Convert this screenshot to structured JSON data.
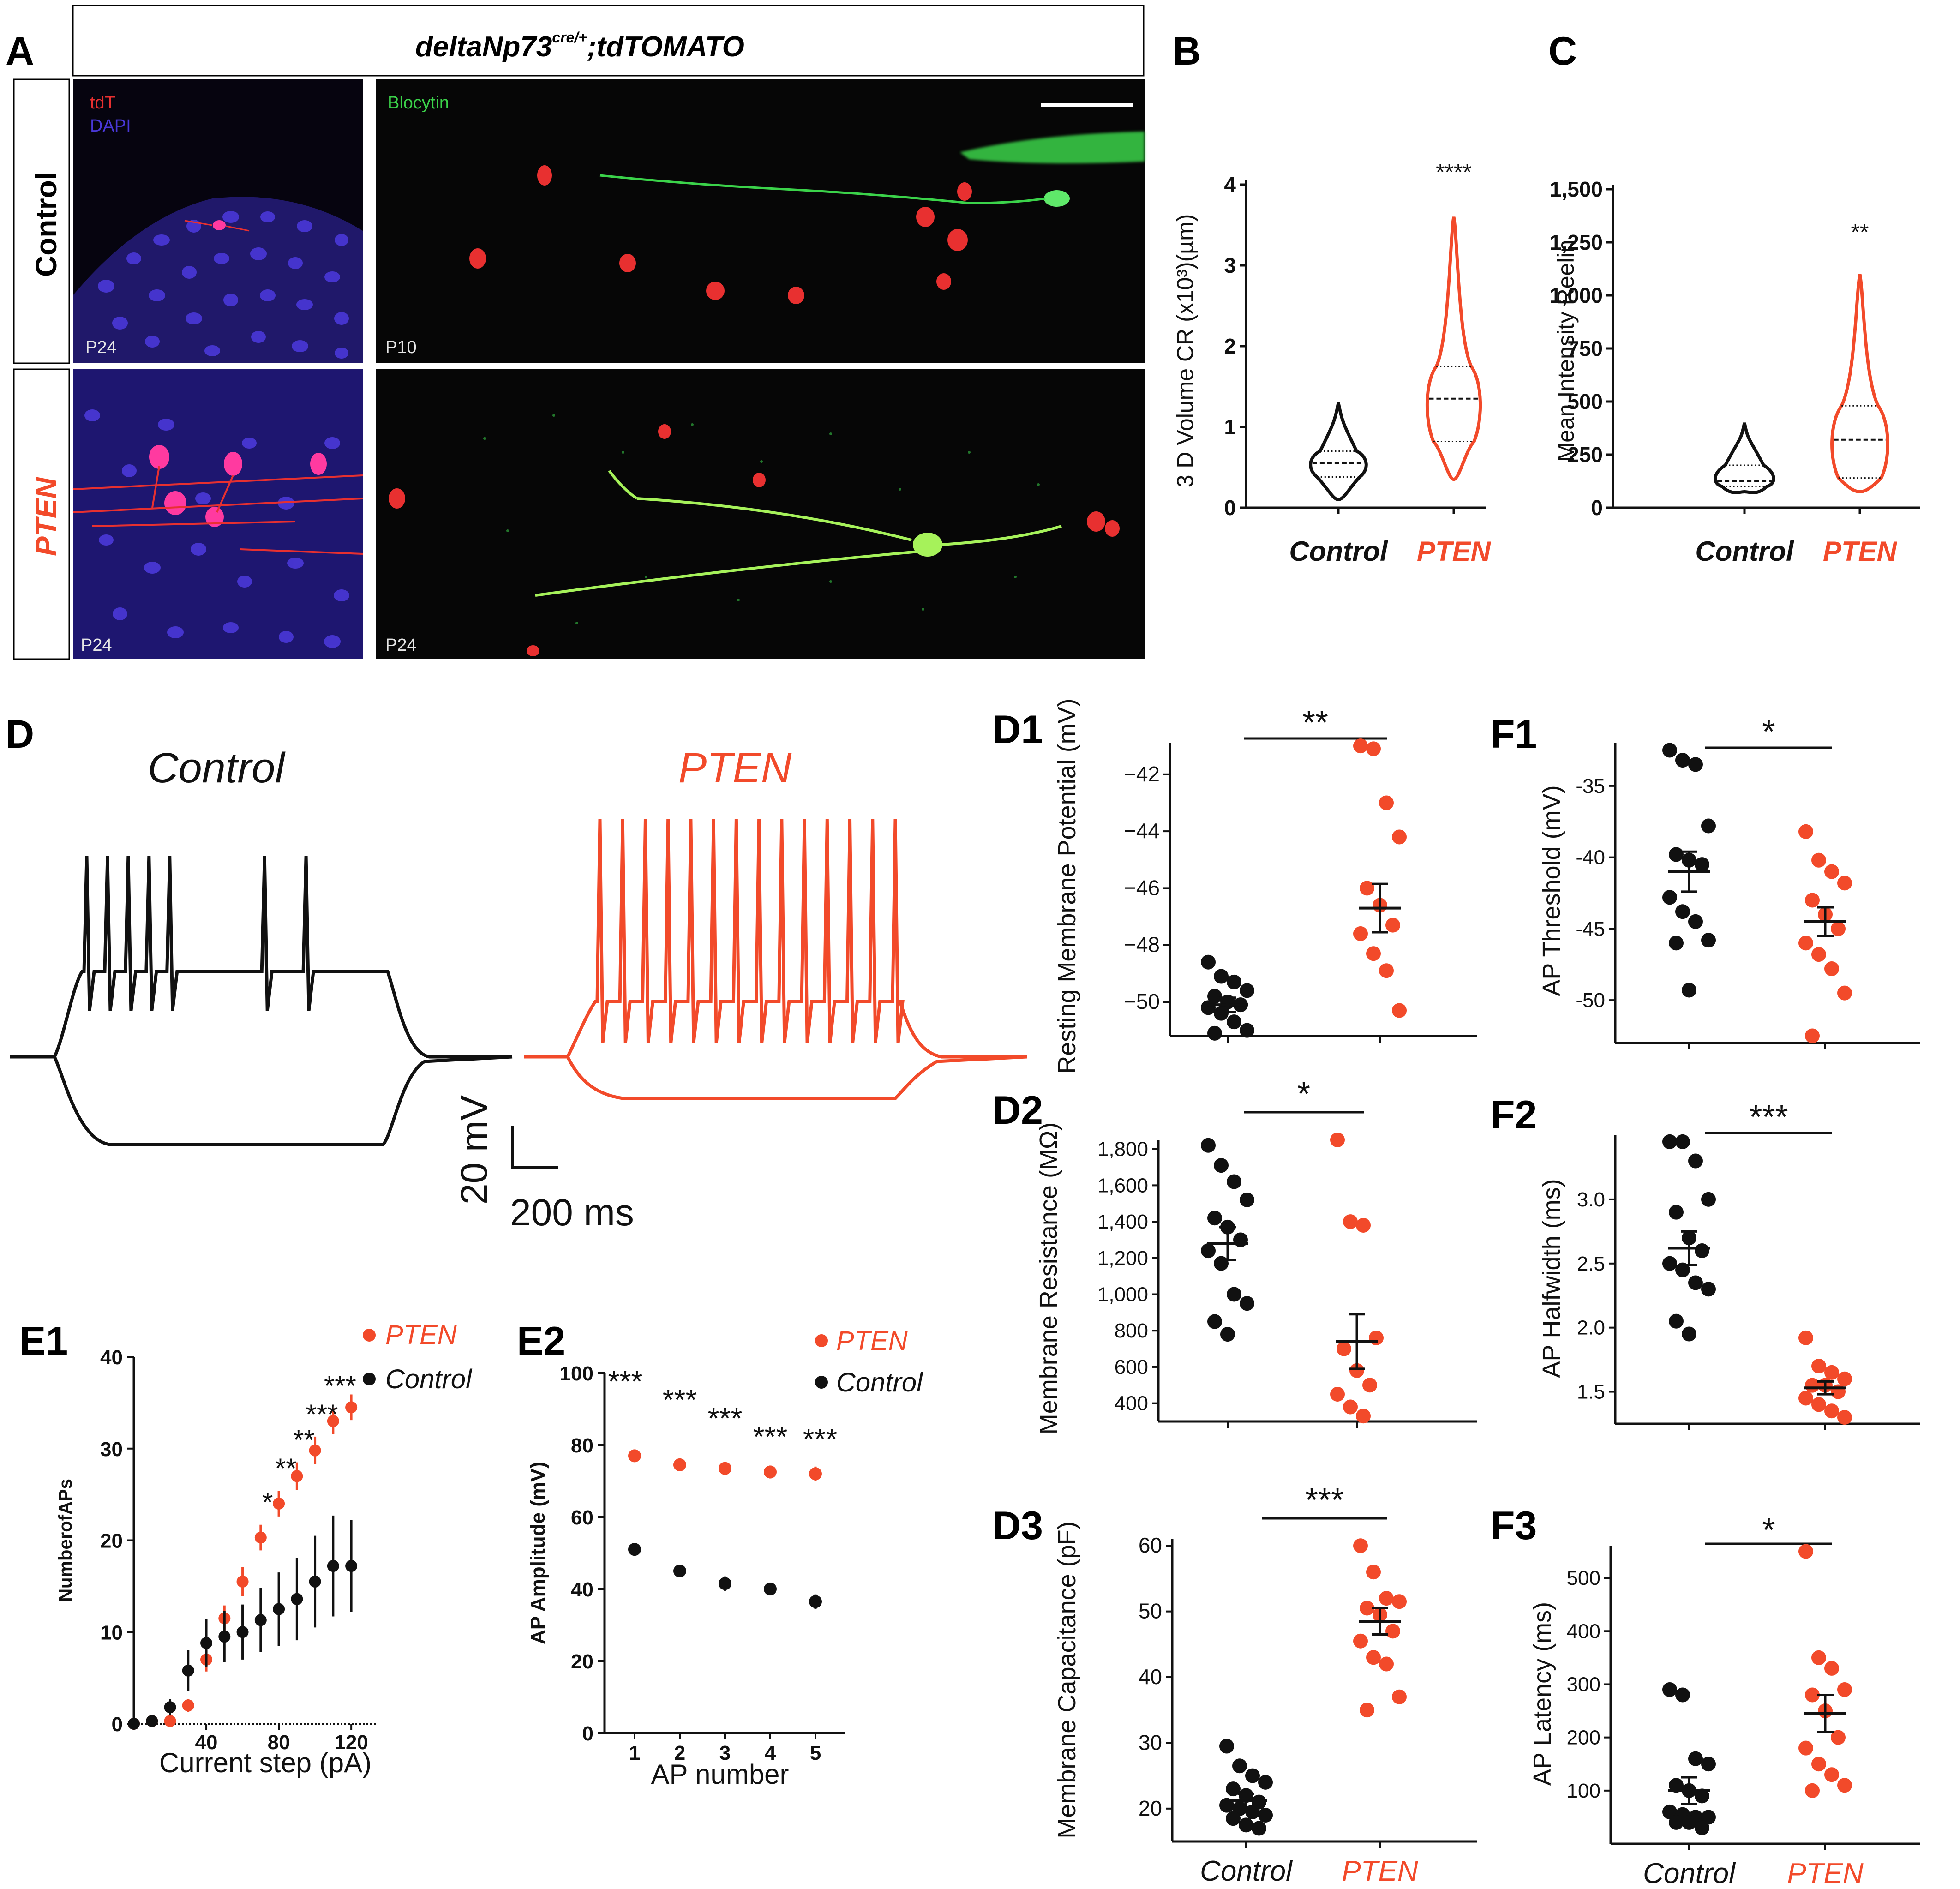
{
  "colors": {
    "pten": "#f24a2a",
    "control": "#111111",
    "tdt": "#e83030",
    "dapi": "#4a38d8",
    "blocytin": "#3bd34a"
  },
  "panel_letters": {
    "A": "A",
    "B": "B",
    "C": "C",
    "D": "D",
    "D1": "D1",
    "D2": "D2",
    "D3": "D3",
    "E1": "E1",
    "E2": "E2",
    "F1": "F1",
    "F2": "F2",
    "F3": "F3"
  },
  "micrographs": {
    "header_main": "deltaNp73",
    "header_sup": "cre/+",
    "header_tail": ";tdTOMATO",
    "row_control": "Control",
    "row_pten": "PTEN",
    "legend_tdt": "tdT",
    "legend_dapi": "DAPI",
    "legend_blocytin": "Blocytin",
    "age_control_left": "P24",
    "age_control_right": "P10",
    "age_pten_left": "P24",
    "age_pten_right": "P24"
  },
  "traces": {
    "title_control": "Control",
    "title_pten": "PTEN",
    "scale_v": "20 mV",
    "scale_t": "200 ms",
    "control_spike_count": 8,
    "pten_spike_count": 14
  },
  "chart_data": [
    {
      "id": "B",
      "type": "violin",
      "ylabel": "3 D Volume CR (x10³)(µm)",
      "ylim": [
        0,
        4
      ],
      "yticks": [
        "0",
        "1",
        "2",
        "3",
        "4"
      ],
      "categories": [
        "Control",
        "PTEN"
      ],
      "significance": "****",
      "series": [
        {
          "name": "Control",
          "min": 0.1,
          "max": 1.3,
          "q1": 0.38,
          "median": 0.55,
          "q3": 0.7
        },
        {
          "name": "PTEN",
          "min": 0.35,
          "max": 3.6,
          "q1": 0.82,
          "median": 1.35,
          "q3": 1.75
        }
      ]
    },
    {
      "id": "C",
      "type": "violin",
      "ylabel": "Mean Intensity Reelin",
      "ylim": [
        0,
        1500
      ],
      "yticks": [
        "0",
        "250",
        "500",
        "750",
        "1,000",
        "1,250",
        "1,500"
      ],
      "categories": [
        "Control",
        "PTEN"
      ],
      "significance": "**",
      "series": [
        {
          "name": "Control",
          "min": 75,
          "max": 400,
          "q1": 100,
          "median": 125,
          "q3": 200
        },
        {
          "name": "PTEN",
          "min": 75,
          "max": 1100,
          "q1": 140,
          "median": 320,
          "q3": 480
        }
      ]
    },
    {
      "id": "D1",
      "type": "scatter",
      "ylabel": "Resting Membrane Potential (mV)",
      "ylim": [
        -51.2,
        -40.9
      ],
      "yticks": [
        "−42",
        "−44",
        "−46",
        "−48",
        "−50"
      ],
      "significance": "**",
      "series": [
        {
          "name": "Control",
          "values": [
            -48.6,
            -49.1,
            -49.3,
            -49.6,
            -49.8,
            -50.0,
            -50.1,
            -50.2,
            -50.4,
            -50.7,
            -51.0,
            -51.1
          ],
          "mean": -50.1,
          "sem": 0.25
        },
        {
          "name": "PTEN",
          "values": [
            -41.0,
            -41.1,
            -43.0,
            -44.2,
            -46.0,
            -46.6,
            -47.3,
            -47.6,
            -48.3,
            -48.9,
            -50.3
          ],
          "mean": -46.7,
          "sem": 0.85
        }
      ]
    },
    {
      "id": "D2",
      "type": "scatter",
      "ylabel": "Membrane Resistance (MΩ)",
      "ylim": [
        300,
        1850
      ],
      "yticks": [
        "400",
        "600",
        "800",
        "1,000",
        "1,200",
        "1,400",
        "1,600",
        "1,800"
      ],
      "significance": "*",
      "series": [
        {
          "name": "Control",
          "values": [
            1820,
            1710,
            1620,
            1520,
            1420,
            1370,
            1300,
            1240,
            1170,
            1000,
            950,
            850,
            780
          ],
          "mean": 1280,
          "sem": 90
        },
        {
          "name": "PTEN",
          "values": [
            1850,
            1400,
            1380,
            760,
            700,
            580,
            500,
            450,
            380,
            330
          ],
          "mean": 740,
          "sem": 150
        }
      ]
    },
    {
      "id": "D3",
      "type": "scatter",
      "ylabel": "Membrane Capacitance (pF)",
      "ylim": [
        15,
        61
      ],
      "yticks": [
        "20",
        "30",
        "40",
        "50",
        "60"
      ],
      "significance": "***",
      "series": [
        {
          "name": "Control",
          "values": [
            29.5,
            26.5,
            25.0,
            24.0,
            23.0,
            22.0,
            21.0,
            20.5,
            20.0,
            19.5,
            19.0,
            18.5,
            17.5,
            17.0
          ],
          "mean": 21.2,
          "sem": 1.0
        },
        {
          "name": "PTEN",
          "values": [
            60.0,
            56.0,
            52.0,
            51.5,
            50.5,
            49.5,
            47.0,
            45.5,
            43.0,
            42.0,
            37.0,
            35.0
          ],
          "mean": 48.5,
          "sem": 2.0
        }
      ]
    },
    {
      "id": "E1",
      "type": "line",
      "xlabel": "Current step (pA)",
      "ylabel": "NumberofAPs",
      "xlim": [
        0,
        135
      ],
      "ylim": [
        0,
        40
      ],
      "xticks": [
        "40",
        "80",
        "120"
      ],
      "yticks": [
        "0",
        "10",
        "20",
        "30",
        "40"
      ],
      "x": [
        0,
        10,
        20,
        30,
        40,
        50,
        60,
        70,
        80,
        90,
        100,
        110,
        120
      ],
      "significance": [
        "",
        "",
        "",
        "",
        "",
        "",
        "",
        "*",
        "**",
        "**",
        "***",
        "***",
        ""
      ],
      "series": [
        {
          "name": "PTEN",
          "values": [
            0,
            0.3,
            0.3,
            2.0,
            7.0,
            11.5,
            15.5,
            20.3,
            24.0,
            27.0,
            29.8,
            33.0,
            34.5
          ],
          "err": [
            0,
            0.2,
            0.2,
            0.7,
            1.3,
            1.4,
            1.6,
            1.4,
            1.4,
            1.5,
            1.5,
            1.4,
            1.4
          ]
        },
        {
          "name": "Control",
          "values": [
            0,
            0.3,
            1.8,
            5.8,
            8.8,
            9.5,
            10.0,
            11.3,
            12.5,
            13.6,
            15.5,
            17.2,
            17.2
          ],
          "err": [
            0,
            0.2,
            0.9,
            2.2,
            2.6,
            2.8,
            3.0,
            3.5,
            4.0,
            4.5,
            5.0,
            5.5,
            5.0
          ]
        }
      ]
    },
    {
      "id": "E2",
      "type": "scatter",
      "xlabel": "AP number",
      "ylabel": "AP Amplitude (mV)",
      "ylim": [
        0,
        100
      ],
      "categories": [
        "1",
        "2",
        "3",
        "4",
        "5"
      ],
      "yticks": [
        "0",
        "20",
        "40",
        "60",
        "80",
        "100"
      ],
      "significance": [
        "***",
        "***",
        "***",
        "***",
        "***"
      ],
      "series": [
        {
          "name": "PTEN",
          "values": [
            77.0,
            74.5,
            73.5,
            72.5,
            72.0
          ],
          "err": [
            1.0,
            1.2,
            1.2,
            1.8,
            2.0
          ]
        },
        {
          "name": "Control",
          "values": [
            51.0,
            45.0,
            41.5,
            40.0,
            36.5
          ],
          "err": [
            1.5,
            1.2,
            2.0,
            1.8,
            2.0
          ]
        }
      ]
    },
    {
      "id": "F1",
      "type": "scatter",
      "ylabel": "AP Threshold (mV)",
      "ylim": [
        -53,
        -32
      ],
      "yticks": [
        "-35",
        "-40",
        "-45",
        "-50"
      ],
      "significance": "*",
      "series": [
        {
          "name": "Control",
          "values": [
            -32.5,
            -33.2,
            -33.5,
            -37.8,
            -39.8,
            -40.2,
            -40.5,
            -42.8,
            -43.8,
            -44.5,
            -45.8,
            -46.0,
            -49.3
          ],
          "mean": -41.0,
          "sem": 1.4
        },
        {
          "name": "PTEN",
          "values": [
            -38.2,
            -40.2,
            -41.0,
            -41.8,
            -43.0,
            -44.0,
            -45.0,
            -46.0,
            -46.8,
            -47.8,
            -49.5,
            -52.5
          ],
          "mean": -44.5,
          "sem": 1.0
        }
      ]
    },
    {
      "id": "F2",
      "type": "scatter",
      "ylabel": "AP Halfwidth (ms)",
      "ylim": [
        1.25,
        3.5
      ],
      "yticks": [
        "1.5",
        "2.0",
        "2.5",
        "3.0"
      ],
      "significance": "***",
      "series": [
        {
          "name": "Control",
          "values": [
            3.45,
            3.45,
            3.3,
            3.0,
            2.9,
            2.7,
            2.6,
            2.5,
            2.45,
            2.35,
            2.3,
            2.05,
            1.95
          ],
          "mean": 2.62,
          "sem": 0.13
        },
        {
          "name": "PTEN",
          "values": [
            1.92,
            1.7,
            1.65,
            1.6,
            1.55,
            1.55,
            1.5,
            1.45,
            1.4,
            1.35,
            1.3
          ],
          "mean": 1.53,
          "sem": 0.05
        }
      ]
    },
    {
      "id": "F3",
      "type": "scatter",
      "ylabel": "AP Latency (ms)",
      "ylim": [
        0,
        560
      ],
      "yticks": [
        "100",
        "200",
        "300",
        "400",
        "500"
      ],
      "categories": [
        "Control",
        "PTEN"
      ],
      "significance": "*",
      "series": [
        {
          "name": "Control",
          "values": [
            290,
            280,
            160,
            150,
            110,
            100,
            90,
            60,
            55,
            50,
            50,
            40,
            40,
            30
          ],
          "mean": 100,
          "sem": 25
        },
        {
          "name": "PTEN",
          "values": [
            550,
            350,
            330,
            290,
            280,
            250,
            200,
            180,
            150,
            130,
            110,
            100
          ],
          "mean": 245,
          "sem": 35
        }
      ]
    }
  ]
}
